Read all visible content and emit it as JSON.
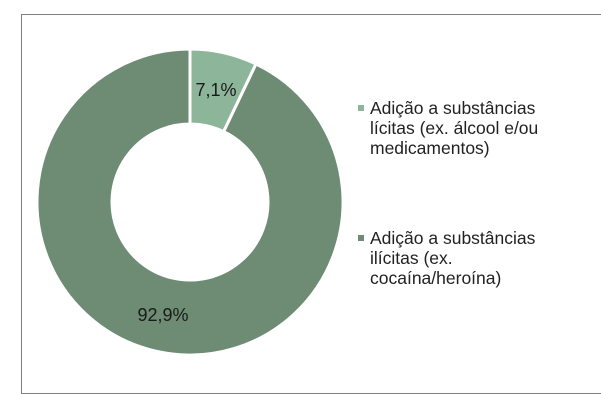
{
  "chart_data": {
    "type": "pie",
    "categories": [
      "Adição a substâncias lícitas (ex. álcool e/ou medicamentos)",
      "Adição a substâncias ilícitas (ex. cocaína/heroína)"
    ],
    "values": [
      7.1,
      92.9
    ],
    "value_labels": [
      "7,1%",
      "92,9%"
    ],
    "colors": [
      "#8db59a",
      "#6e8b74"
    ],
    "legend": {
      "position": "right",
      "entries": [
        {
          "lines": [
            "Adição a substâncias",
            "lícitas (ex. álcool e/ou",
            "medicamentos)"
          ]
        },
        {
          "lines": [
            "Adição a substâncias",
            "ilícitas (ex.",
            "cocaína/heroína)"
          ]
        }
      ]
    },
    "title": ""
  }
}
